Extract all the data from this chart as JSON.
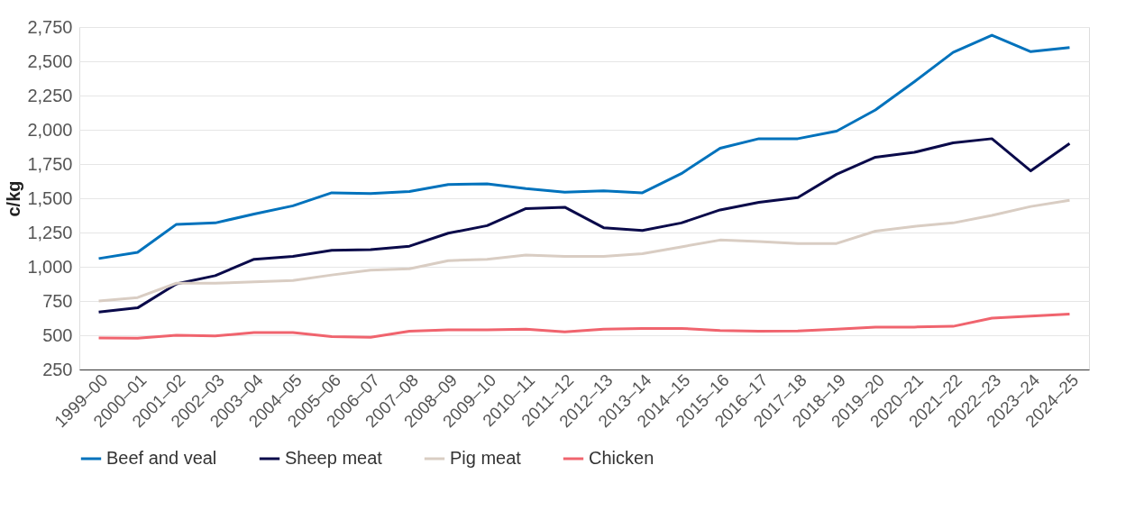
{
  "chart_data": {
    "type": "line",
    "ylabel": "c/kg",
    "categories": [
      "1999–00",
      "2000–01",
      "2001–02",
      "2002–03",
      "2003–04",
      "2004–05",
      "2005–06",
      "2006–07",
      "2007–08",
      "2008–09",
      "2009–10",
      "2010–11",
      "2011–12",
      "2012–13",
      "2013–14",
      "2014–15",
      "2015–16",
      "2016–17",
      "2017–18",
      "2018–19",
      "2019–20",
      "2020–21",
      "2021–22",
      "2022–23",
      "2023–24",
      "2024–25"
    ],
    "series": [
      {
        "name": "Beef and veal",
        "color": "#0072bc",
        "values": [
          1060,
          1105,
          1310,
          1320,
          1385,
          1445,
          1540,
          1535,
          1550,
          1600,
          1605,
          1570,
          1545,
          1555,
          1540,
          1680,
          1865,
          1935,
          1935,
          1990,
          2145,
          2350,
          2565,
          2690,
          2570,
          2600
        ]
      },
      {
        "name": "Sheep meat",
        "color": "#0a0a4a",
        "values": [
          670,
          700,
          875,
          935,
          1055,
          1075,
          1120,
          1125,
          1150,
          1245,
          1300,
          1425,
          1435,
          1285,
          1265,
          1320,
          1415,
          1470,
          1505,
          1675,
          1800,
          1835,
          1905,
          1935,
          1700,
          1900
        ]
      },
      {
        "name": "Pig meat",
        "color": "#d9cdc3",
        "values": [
          750,
          775,
          880,
          880,
          890,
          900,
          940,
          975,
          985,
          1045,
          1055,
          1085,
          1075,
          1075,
          1095,
          1145,
          1195,
          1185,
          1170,
          1170,
          1260,
          1295,
          1320,
          1375,
          1440,
          1485
        ]
      },
      {
        "name": "Chicken",
        "color": "#f0646e",
        "values": [
          480,
          478,
          500,
          495,
          520,
          520,
          490,
          485,
          530,
          540,
          540,
          545,
          525,
          545,
          550,
          550,
          535,
          530,
          532,
          545,
          560,
          560,
          565,
          625,
          640,
          655
        ]
      }
    ],
    "ylim": [
      250,
      2750
    ],
    "yticks": [
      250,
      500,
      750,
      {
        "value": 1000,
        "label": "1,000"
      },
      {
        "value": 1250,
        "label": "1,250"
      },
      {
        "value": 1500,
        "label": "1,500"
      },
      {
        "value": 1750,
        "label": "1,750"
      },
      {
        "value": 2000,
        "label": "2,000"
      },
      {
        "value": 2250,
        "label": "2,250"
      },
      {
        "value": 2500,
        "label": "2,500"
      },
      {
        "value": 2750,
        "label": "2,750"
      }
    ],
    "grid": "y",
    "legend": "bottom",
    "marker": "none",
    "line_style": "solid"
  }
}
